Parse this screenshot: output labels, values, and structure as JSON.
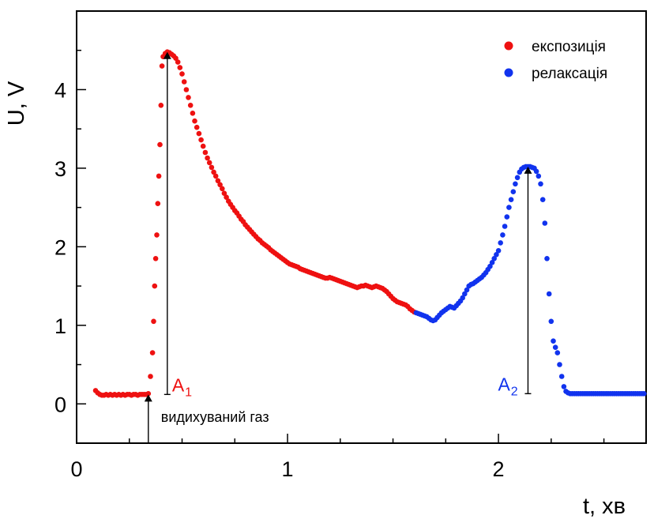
{
  "chart_data": {
    "type": "scatter",
    "xlabel": "t, хв",
    "ylabel": "U, V",
    "xlim": [
      0,
      2.7
    ],
    "ylim": [
      -0.5,
      5.0
    ],
    "x_ticks": [
      0,
      1,
      2
    ],
    "y_ticks": [
      0,
      1,
      2,
      3,
      4
    ],
    "grid": false,
    "legend": {
      "placement": "top-right"
    },
    "series": [
      {
        "name": "експозиція",
        "color": "#ee1111",
        "points": [
          [
            0.09,
            0.17
          ],
          [
            0.1,
            0.14
          ],
          [
            0.11,
            0.12
          ],
          [
            0.12,
            0.11
          ],
          [
            0.13,
            0.11
          ],
          [
            0.14,
            0.12
          ],
          [
            0.15,
            0.11
          ],
          [
            0.16,
            0.12
          ],
          [
            0.17,
            0.11
          ],
          [
            0.18,
            0.12
          ],
          [
            0.19,
            0.11
          ],
          [
            0.2,
            0.12
          ],
          [
            0.21,
            0.11
          ],
          [
            0.22,
            0.12
          ],
          [
            0.23,
            0.11
          ],
          [
            0.24,
            0.12
          ],
          [
            0.25,
            0.12
          ],
          [
            0.26,
            0.11
          ],
          [
            0.27,
            0.12
          ],
          [
            0.28,
            0.12
          ],
          [
            0.29,
            0.11
          ],
          [
            0.3,
            0.12
          ],
          [
            0.31,
            0.12
          ],
          [
            0.32,
            0.12
          ],
          [
            0.33,
            0.12
          ],
          [
            0.34,
            0.13
          ],
          [
            0.35,
            0.35
          ],
          [
            0.36,
            0.65
          ],
          [
            0.365,
            1.05
          ],
          [
            0.37,
            1.5
          ],
          [
            0.375,
            1.85
          ],
          [
            0.38,
            2.15
          ],
          [
            0.385,
            2.55
          ],
          [
            0.39,
            2.9
          ],
          [
            0.395,
            3.3
          ],
          [
            0.4,
            3.8
          ],
          [
            0.405,
            4.3
          ],
          [
            0.41,
            4.42
          ],
          [
            0.42,
            4.46
          ],
          [
            0.43,
            4.48
          ],
          [
            0.44,
            4.47
          ],
          [
            0.45,
            4.45
          ],
          [
            0.46,
            4.43
          ],
          [
            0.47,
            4.4
          ],
          [
            0.48,
            4.35
          ],
          [
            0.49,
            4.28
          ],
          [
            0.5,
            4.2
          ],
          [
            0.51,
            4.1
          ],
          [
            0.52,
            4.0
          ],
          [
            0.53,
            3.9
          ],
          [
            0.54,
            3.8
          ],
          [
            0.55,
            3.7
          ],
          [
            0.56,
            3.6
          ],
          [
            0.57,
            3.52
          ],
          [
            0.58,
            3.44
          ],
          [
            0.59,
            3.36
          ],
          [
            0.6,
            3.28
          ],
          [
            0.61,
            3.2
          ],
          [
            0.62,
            3.13
          ],
          [
            0.63,
            3.07
          ],
          [
            0.64,
            3.01
          ],
          [
            0.65,
            2.95
          ],
          [
            0.66,
            2.9
          ],
          [
            0.67,
            2.84
          ],
          [
            0.68,
            2.79
          ],
          [
            0.69,
            2.74
          ],
          [
            0.7,
            2.68
          ],
          [
            0.71,
            2.63
          ],
          [
            0.72,
            2.58
          ],
          [
            0.73,
            2.54
          ],
          [
            0.74,
            2.5
          ],
          [
            0.75,
            2.46
          ],
          [
            0.76,
            2.43
          ],
          [
            0.77,
            2.39
          ],
          [
            0.78,
            2.35
          ],
          [
            0.79,
            2.32
          ],
          [
            0.8,
            2.28
          ],
          [
            0.81,
            2.25
          ],
          [
            0.82,
            2.22
          ],
          [
            0.83,
            2.19
          ],
          [
            0.84,
            2.16
          ],
          [
            0.85,
            2.13
          ],
          [
            0.86,
            2.1
          ],
          [
            0.87,
            2.08
          ],
          [
            0.88,
            2.05
          ],
          [
            0.89,
            2.03
          ],
          [
            0.9,
            2.01
          ],
          [
            0.91,
            1.99
          ],
          [
            0.92,
            1.96
          ],
          [
            0.93,
            1.94
          ],
          [
            0.94,
            1.92
          ],
          [
            0.95,
            1.9
          ],
          [
            0.96,
            1.88
          ],
          [
            0.97,
            1.86
          ],
          [
            0.98,
            1.84
          ],
          [
            0.99,
            1.82
          ],
          [
            1.0,
            1.8
          ],
          [
            1.01,
            1.78
          ],
          [
            1.02,
            1.77
          ],
          [
            1.03,
            1.76
          ],
          [
            1.04,
            1.75
          ],
          [
            1.05,
            1.74
          ],
          [
            1.06,
            1.72
          ],
          [
            1.07,
            1.71
          ],
          [
            1.08,
            1.7
          ],
          [
            1.09,
            1.69
          ],
          [
            1.1,
            1.68
          ],
          [
            1.11,
            1.67
          ],
          [
            1.12,
            1.66
          ],
          [
            1.13,
            1.65
          ],
          [
            1.14,
            1.64
          ],
          [
            1.15,
            1.63
          ],
          [
            1.16,
            1.62
          ],
          [
            1.17,
            1.61
          ],
          [
            1.18,
            1.6
          ],
          [
            1.19,
            1.6
          ],
          [
            1.2,
            1.61
          ],
          [
            1.21,
            1.6
          ],
          [
            1.22,
            1.59
          ],
          [
            1.23,
            1.58
          ],
          [
            1.24,
            1.57
          ],
          [
            1.25,
            1.56
          ],
          [
            1.26,
            1.55
          ],
          [
            1.27,
            1.54
          ],
          [
            1.28,
            1.53
          ],
          [
            1.29,
            1.52
          ],
          [
            1.3,
            1.51
          ],
          [
            1.31,
            1.5
          ],
          [
            1.32,
            1.49
          ],
          [
            1.33,
            1.48
          ],
          [
            1.34,
            1.49
          ],
          [
            1.35,
            1.5
          ],
          [
            1.36,
            1.5
          ],
          [
            1.37,
            1.51
          ],
          [
            1.38,
            1.5
          ],
          [
            1.39,
            1.49
          ],
          [
            1.4,
            1.48
          ],
          [
            1.41,
            1.49
          ],
          [
            1.42,
            1.5
          ],
          [
            1.43,
            1.49
          ],
          [
            1.44,
            1.48
          ],
          [
            1.45,
            1.47
          ],
          [
            1.46,
            1.45
          ],
          [
            1.47,
            1.43
          ],
          [
            1.48,
            1.4
          ],
          [
            1.49,
            1.37
          ],
          [
            1.5,
            1.34
          ],
          [
            1.51,
            1.32
          ],
          [
            1.52,
            1.3
          ],
          [
            1.53,
            1.29
          ],
          [
            1.54,
            1.28
          ],
          [
            1.55,
            1.27
          ],
          [
            1.56,
            1.26
          ],
          [
            1.57,
            1.24
          ],
          [
            1.58,
            1.21
          ],
          [
            1.59,
            1.19
          ],
          [
            1.6,
            1.17
          ]
        ]
      },
      {
        "name": "релаксація",
        "color": "#1133ee",
        "points": [
          [
            1.61,
            1.16
          ],
          [
            1.62,
            1.15
          ],
          [
            1.63,
            1.14
          ],
          [
            1.64,
            1.13
          ],
          [
            1.65,
            1.12
          ],
          [
            1.66,
            1.11
          ],
          [
            1.67,
            1.09
          ],
          [
            1.68,
            1.07
          ],
          [
            1.69,
            1.06
          ],
          [
            1.7,
            1.07
          ],
          [
            1.71,
            1.1
          ],
          [
            1.72,
            1.13
          ],
          [
            1.73,
            1.16
          ],
          [
            1.74,
            1.18
          ],
          [
            1.75,
            1.2
          ],
          [
            1.76,
            1.22
          ],
          [
            1.77,
            1.24
          ],
          [
            1.78,
            1.23
          ],
          [
            1.79,
            1.22
          ],
          [
            1.8,
            1.25
          ],
          [
            1.81,
            1.28
          ],
          [
            1.82,
            1.31
          ],
          [
            1.83,
            1.35
          ],
          [
            1.84,
            1.4
          ],
          [
            1.85,
            1.45
          ],
          [
            1.86,
            1.5
          ],
          [
            1.87,
            1.52
          ],
          [
            1.88,
            1.53
          ],
          [
            1.89,
            1.55
          ],
          [
            1.9,
            1.57
          ],
          [
            1.91,
            1.59
          ],
          [
            1.92,
            1.61
          ],
          [
            1.93,
            1.64
          ],
          [
            1.94,
            1.67
          ],
          [
            1.95,
            1.71
          ],
          [
            1.96,
            1.75
          ],
          [
            1.97,
            1.8
          ],
          [
            1.98,
            1.85
          ],
          [
            1.99,
            1.9
          ],
          [
            2.0,
            1.95
          ],
          [
            2.01,
            2.05
          ],
          [
            2.02,
            2.15
          ],
          [
            2.03,
            2.26
          ],
          [
            2.04,
            2.38
          ],
          [
            2.05,
            2.5
          ],
          [
            2.06,
            2.6
          ],
          [
            2.07,
            2.7
          ],
          [
            2.08,
            2.8
          ],
          [
            2.09,
            2.88
          ],
          [
            2.1,
            2.95
          ],
          [
            2.11,
            2.99
          ],
          [
            2.12,
            3.01
          ],
          [
            2.13,
            3.02
          ],
          [
            2.14,
            3.02
          ],
          [
            2.15,
            3.02
          ],
          [
            2.16,
            3.01
          ],
          [
            2.17,
            3.0
          ],
          [
            2.18,
            2.96
          ],
          [
            2.19,
            2.9
          ],
          [
            2.2,
            2.8
          ],
          [
            2.21,
            2.6
          ],
          [
            2.22,
            2.3
          ],
          [
            2.23,
            1.85
          ],
          [
            2.24,
            1.4
          ],
          [
            2.25,
            1.05
          ],
          [
            2.26,
            0.8
          ],
          [
            2.27,
            0.72
          ],
          [
            2.28,
            0.65
          ],
          [
            2.29,
            0.5
          ],
          [
            2.3,
            0.35
          ],
          [
            2.31,
            0.22
          ],
          [
            2.32,
            0.16
          ],
          [
            2.33,
            0.14
          ],
          [
            2.34,
            0.13
          ],
          [
            2.35,
            0.13
          ],
          [
            2.36,
            0.13
          ],
          [
            2.37,
            0.13
          ],
          [
            2.38,
            0.13
          ],
          [
            2.39,
            0.13
          ],
          [
            2.4,
            0.13
          ],
          [
            2.41,
            0.13
          ],
          [
            2.42,
            0.13
          ],
          [
            2.43,
            0.13
          ],
          [
            2.44,
            0.13
          ],
          [
            2.45,
            0.13
          ],
          [
            2.46,
            0.13
          ],
          [
            2.47,
            0.13
          ],
          [
            2.48,
            0.13
          ],
          [
            2.49,
            0.13
          ],
          [
            2.5,
            0.13
          ],
          [
            2.51,
            0.13
          ],
          [
            2.52,
            0.13
          ],
          [
            2.53,
            0.13
          ],
          [
            2.54,
            0.13
          ],
          [
            2.55,
            0.13
          ],
          [
            2.56,
            0.13
          ],
          [
            2.57,
            0.13
          ],
          [
            2.58,
            0.13
          ],
          [
            2.59,
            0.13
          ],
          [
            2.6,
            0.13
          ],
          [
            2.61,
            0.13
          ],
          [
            2.62,
            0.13
          ],
          [
            2.63,
            0.13
          ],
          [
            2.64,
            0.13
          ],
          [
            2.65,
            0.13
          ],
          [
            2.66,
            0.13
          ],
          [
            2.67,
            0.13
          ],
          [
            2.68,
            0.13
          ],
          [
            2.69,
            0.13
          ]
        ]
      }
    ],
    "annotations": [
      {
        "label": "A",
        "sub": "1",
        "color": "#ee1111",
        "x": 0.43,
        "y_from": 0.12,
        "y_to": 4.48
      },
      {
        "label": "A",
        "sub": "2",
        "color": "#1133ee",
        "x": 2.14,
        "y_from": 0.13,
        "y_to": 3.02
      },
      {
        "label": "видихуваний газ",
        "color": "#000000",
        "x": 0.34,
        "y_from": -0.5,
        "y_to": 0.12
      }
    ]
  }
}
